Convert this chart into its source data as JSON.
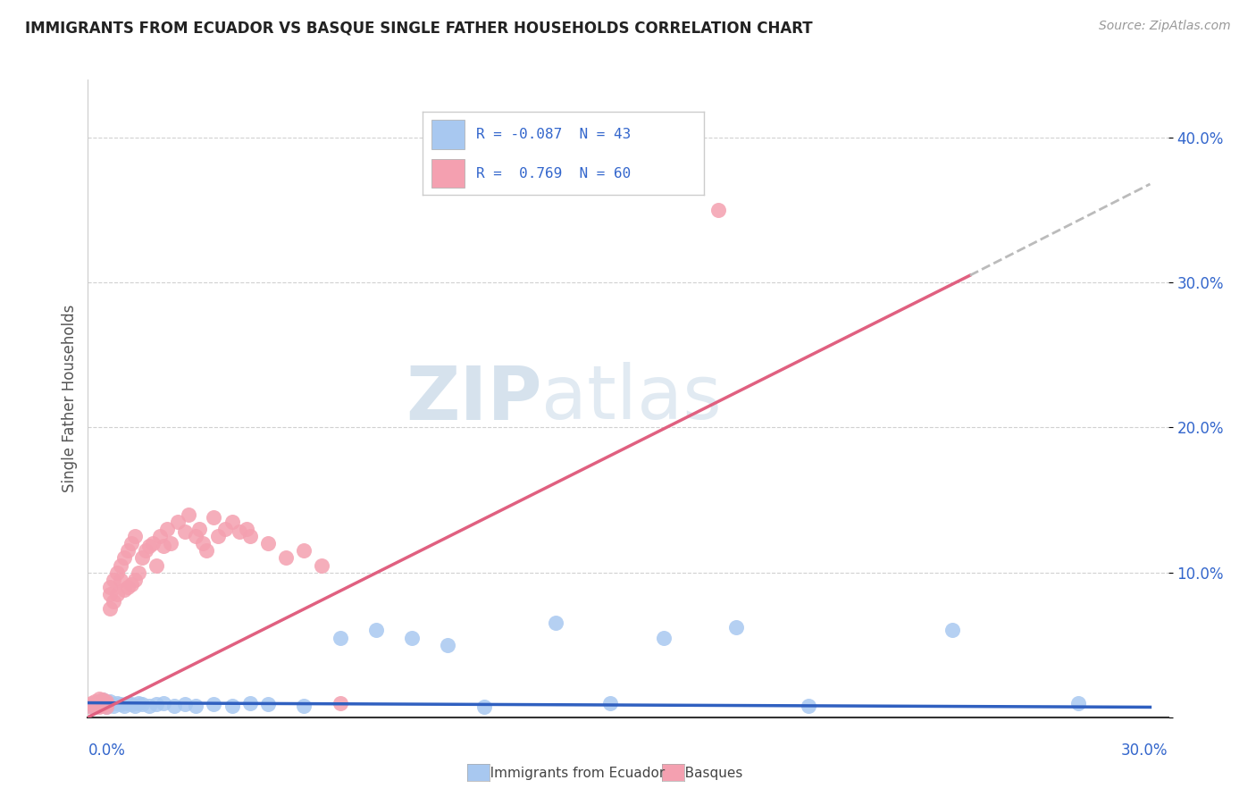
{
  "title": "IMMIGRANTS FROM ECUADOR VS BASQUE SINGLE FATHER HOUSEHOLDS CORRELATION CHART",
  "source": "Source: ZipAtlas.com",
  "ylabel": "Single Father Households",
  "xlim": [
    0.0,
    0.3
  ],
  "ylim": [
    0.0,
    0.44
  ],
  "yticks": [
    0.0,
    0.1,
    0.2,
    0.3,
    0.4
  ],
  "ytick_labels": [
    "",
    "10.0%",
    "20.0%",
    "30.0%",
    "40.0%"
  ],
  "color_blue": "#A8C8F0",
  "color_pink": "#F4A0B0",
  "color_blue_line": "#3060C0",
  "color_pink_line": "#E06080",
  "color_dashed": "#BBBBBB",
  "watermark_zip": "ZIP",
  "watermark_atlas": "atlas",
  "blue_scatter_x": [
    0.001,
    0.002,
    0.002,
    0.003,
    0.003,
    0.004,
    0.004,
    0.005,
    0.005,
    0.006,
    0.006,
    0.007,
    0.008,
    0.009,
    0.01,
    0.011,
    0.012,
    0.013,
    0.014,
    0.015,
    0.017,
    0.019,
    0.021,
    0.024,
    0.027,
    0.03,
    0.035,
    0.04,
    0.045,
    0.05,
    0.06,
    0.07,
    0.08,
    0.09,
    0.1,
    0.11,
    0.13,
    0.145,
    0.16,
    0.18,
    0.2,
    0.24,
    0.275
  ],
  "blue_scatter_y": [
    0.008,
    0.01,
    0.007,
    0.009,
    0.011,
    0.008,
    0.012,
    0.007,
    0.01,
    0.009,
    0.011,
    0.008,
    0.01,
    0.009,
    0.008,
    0.01,
    0.009,
    0.008,
    0.01,
    0.009,
    0.008,
    0.009,
    0.01,
    0.008,
    0.009,
    0.008,
    0.009,
    0.008,
    0.01,
    0.009,
    0.008,
    0.055,
    0.06,
    0.055,
    0.05,
    0.007,
    0.065,
    0.01,
    0.055,
    0.062,
    0.008,
    0.06,
    0.01
  ],
  "pink_scatter_x": [
    0.001,
    0.001,
    0.002,
    0.002,
    0.003,
    0.003,
    0.003,
    0.004,
    0.004,
    0.004,
    0.005,
    0.005,
    0.005,
    0.006,
    0.006,
    0.006,
    0.007,
    0.007,
    0.008,
    0.008,
    0.009,
    0.009,
    0.01,
    0.01,
    0.011,
    0.011,
    0.012,
    0.012,
    0.013,
    0.013,
    0.014,
    0.015,
    0.016,
    0.017,
    0.018,
    0.019,
    0.02,
    0.021,
    0.022,
    0.023,
    0.025,
    0.027,
    0.028,
    0.03,
    0.031,
    0.032,
    0.033,
    0.035,
    0.036,
    0.038,
    0.04,
    0.042,
    0.044,
    0.045,
    0.05,
    0.055,
    0.06,
    0.065,
    0.07,
    0.175
  ],
  "pink_scatter_y": [
    0.007,
    0.01,
    0.008,
    0.011,
    0.007,
    0.009,
    0.013,
    0.008,
    0.01,
    0.012,
    0.007,
    0.009,
    0.011,
    0.075,
    0.085,
    0.09,
    0.08,
    0.095,
    0.085,
    0.1,
    0.095,
    0.105,
    0.088,
    0.11,
    0.09,
    0.115,
    0.092,
    0.12,
    0.095,
    0.125,
    0.1,
    0.11,
    0.115,
    0.118,
    0.12,
    0.105,
    0.125,
    0.118,
    0.13,
    0.12,
    0.135,
    0.128,
    0.14,
    0.125,
    0.13,
    0.12,
    0.115,
    0.138,
    0.125,
    0.13,
    0.135,
    0.128,
    0.13,
    0.125,
    0.12,
    0.11,
    0.115,
    0.105,
    0.01,
    0.35
  ],
  "blue_trend_x": [
    0.0,
    0.295
  ],
  "blue_trend_y": [
    0.01,
    0.007
  ],
  "pink_trend_x": [
    0.0,
    0.245
  ],
  "pink_trend_y": [
    0.0,
    0.305
  ],
  "dashed_trend_x": [
    0.245,
    0.295
  ],
  "dashed_trend_y": [
    0.305,
    0.368
  ]
}
